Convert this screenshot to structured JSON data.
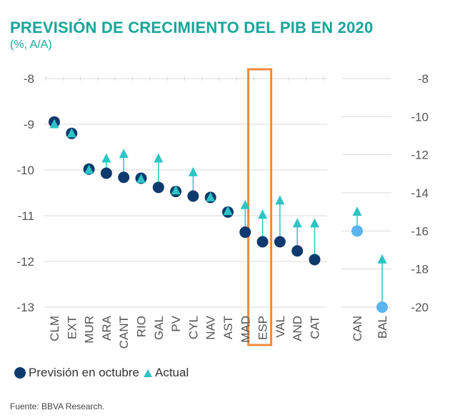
{
  "title": "PREVISIÓN DE CRECIMIENTO DEL PIB EN 2020",
  "subtitle": "(%, A/A)",
  "source": "Fuente: BBVA Research.",
  "colors": {
    "title": "#1aa59a",
    "prevision": "#0e3a6e",
    "actual": "#2cc4c4",
    "prevision_right": "#5bb4ee",
    "highlight": "#f08a3c",
    "grid": "#d9d9d9"
  },
  "chart_data": {
    "type": "scatter",
    "left_axis": {
      "range": [
        -13,
        -8
      ],
      "ticks": [
        "-8",
        "-9",
        "-10",
        "-11",
        "-12",
        "-13"
      ],
      "tick_values": [
        -8,
        -9,
        -10,
        -11,
        -12,
        -13
      ]
    },
    "right_axis": {
      "range": [
        -20,
        -8
      ],
      "ticks": [
        "-8",
        "-10",
        "-12",
        "-14",
        "-16",
        "-18",
        "-20"
      ],
      "tick_values": [
        -8,
        -10,
        -12,
        -14,
        -16,
        -18,
        -20
      ]
    },
    "categories_left": [
      "CLM",
      "EXT",
      "MUR",
      "ARA",
      "CANT",
      "RIO",
      "GAL",
      "PV",
      "CYL",
      "NAV",
      "AST",
      "MAD",
      "ESP",
      "VAL",
      "AND",
      "CAT"
    ],
    "prevision_left": [
      -8.95,
      -9.2,
      -9.98,
      -10.07,
      -10.16,
      -10.18,
      -10.38,
      -10.47,
      -10.57,
      -10.6,
      -10.92,
      -11.36,
      -11.57,
      -11.57,
      -11.77,
      -11.96
    ],
    "actual_left": [
      -9.0,
      -9.2,
      -10.0,
      -9.75,
      -9.65,
      -10.2,
      -9.75,
      -10.45,
      -10.05,
      -10.6,
      -10.9,
      -10.77,
      -10.98,
      -10.67,
      -11.17,
      -11.17
    ],
    "categories_right": [
      "CAN",
      "BAL"
    ],
    "prevision_right": [
      -16.0,
      -20.0
    ],
    "actual_right": [
      -15.0,
      -17.5
    ],
    "highlight": "ESP",
    "legend": {
      "prevision": "Previsión en octubre",
      "actual": "Actual"
    }
  }
}
